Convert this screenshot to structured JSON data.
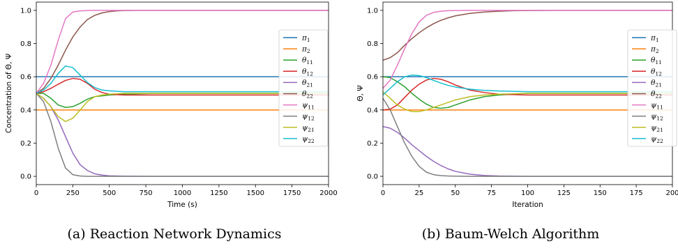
{
  "captions": {
    "a": "(a) Reaction Network Dynamics",
    "b": "(b) Baum-Welch Algorithm"
  },
  "legend_labels": [
    {
      "base": "π",
      "sub": "1"
    },
    {
      "base": "π",
      "sub": "2"
    },
    {
      "base": "θ",
      "sub": "11"
    },
    {
      "base": "θ",
      "sub": "12"
    },
    {
      "base": "θ",
      "sub": "21"
    },
    {
      "base": "θ",
      "sub": "22"
    },
    {
      "base": "ψ",
      "sub": "11"
    },
    {
      "base": "ψ",
      "sub": "12"
    },
    {
      "base": "ψ",
      "sub": "21"
    },
    {
      "base": "ψ",
      "sub": "22"
    }
  ],
  "colors": [
    "#1f77b4",
    "#ff7f0e",
    "#2ca02c",
    "#d62728",
    "#9467bd",
    "#8c564b",
    "#e377c2",
    "#7f7f7f",
    "#bcbd22",
    "#17becf"
  ],
  "chart_data": [
    {
      "type": "line",
      "xlabel": "Time (s)",
      "ylabel": "Concentration of  Θ, Ψ",
      "xlim": [
        0,
        2000
      ],
      "ylim": [
        -0.05,
        1.05
      ],
      "xticks": [
        0,
        250,
        500,
        750,
        1000,
        1250,
        1500,
        1750,
        2000
      ],
      "yticks": [
        0.0,
        0.2,
        0.4,
        0.6,
        0.8,
        1.0
      ],
      "legend_position": "center-right",
      "series": [
        {
          "name": "π1",
          "x": [
            0,
            2000
          ],
          "y": [
            0.6,
            0.6
          ]
        },
        {
          "name": "π2",
          "x": [
            0,
            2000
          ],
          "y": [
            0.4,
            0.4
          ]
        },
        {
          "name": "θ11",
          "x": [
            0,
            50,
            100,
            150,
            200,
            250,
            300,
            350,
            400,
            500,
            600,
            800,
            2000
          ],
          "y": [
            0.5,
            0.5,
            0.47,
            0.43,
            0.415,
            0.42,
            0.44,
            0.465,
            0.48,
            0.49,
            0.495,
            0.5,
            0.5
          ]
        },
        {
          "name": "θ12",
          "x": [
            0,
            50,
            100,
            150,
            200,
            250,
            300,
            350,
            400,
            450,
            500,
            600,
            800,
            2000
          ],
          "y": [
            0.5,
            0.51,
            0.53,
            0.555,
            0.578,
            0.59,
            0.585,
            0.56,
            0.525,
            0.505,
            0.495,
            0.49,
            0.49,
            0.49
          ]
        },
        {
          "name": "θ21",
          "x": [
            0,
            50,
            100,
            150,
            200,
            250,
            300,
            350,
            400,
            450,
            500,
            600,
            800,
            2000
          ],
          "y": [
            0.5,
            0.47,
            0.42,
            0.34,
            0.24,
            0.14,
            0.07,
            0.035,
            0.015,
            0.007,
            0.003,
            0.001,
            0.0,
            0.0
          ]
        },
        {
          "name": "θ22",
          "x": [
            0,
            50,
            100,
            150,
            200,
            250,
            300,
            350,
            400,
            450,
            500,
            550,
            600,
            700,
            2000
          ],
          "y": [
            0.5,
            0.53,
            0.59,
            0.67,
            0.76,
            0.84,
            0.9,
            0.945,
            0.97,
            0.985,
            0.993,
            0.997,
            0.999,
            1.0,
            1.0
          ]
        },
        {
          "name": "ψ11",
          "x": [
            0,
            50,
            100,
            150,
            200,
            250,
            300,
            350,
            400,
            500,
            2000
          ],
          "y": [
            0.5,
            0.56,
            0.67,
            0.82,
            0.95,
            0.99,
            0.997,
            0.999,
            1.0,
            1.0,
            1.0
          ]
        },
        {
          "name": "ψ12",
          "x": [
            0,
            50,
            100,
            150,
            200,
            250,
            300,
            350,
            400,
            2000
          ],
          "y": [
            0.5,
            0.45,
            0.33,
            0.17,
            0.05,
            0.01,
            0.002,
            0.0,
            0.0,
            0.0
          ]
        },
        {
          "name": "ψ21",
          "x": [
            0,
            50,
            100,
            150,
            200,
            250,
            300,
            350,
            400,
            450,
            500,
            600,
            800,
            2000
          ],
          "y": [
            0.5,
            0.47,
            0.42,
            0.36,
            0.33,
            0.35,
            0.4,
            0.45,
            0.48,
            0.49,
            0.495,
            0.5,
            0.5,
            0.5
          ]
        },
        {
          "name": "ψ22",
          "x": [
            0,
            50,
            100,
            150,
            200,
            250,
            300,
            350,
            400,
            450,
            500,
            600,
            800,
            2000
          ],
          "y": [
            0.5,
            0.52,
            0.56,
            0.62,
            0.665,
            0.655,
            0.61,
            0.565,
            0.535,
            0.52,
            0.515,
            0.51,
            0.51,
            0.51
          ]
        }
      ]
    },
    {
      "type": "line",
      "xlabel": "Iteration",
      "ylabel": "Θ, Ψ",
      "xlim": [
        0,
        200
      ],
      "ylim": [
        -0.05,
        1.05
      ],
      "xticks": [
        0,
        25,
        50,
        75,
        100,
        125,
        150,
        175,
        200
      ],
      "yticks": [
        0.0,
        0.2,
        0.4,
        0.6,
        0.8,
        1.0
      ],
      "legend_position": "center-right",
      "series": [
        {
          "name": "π1",
          "x": [
            0,
            200
          ],
          "y": [
            0.6,
            0.6
          ]
        },
        {
          "name": "π2",
          "x": [
            0,
            200
          ],
          "y": [
            0.4,
            0.4
          ]
        },
        {
          "name": "θ11",
          "x": [
            0,
            5,
            10,
            15,
            20,
            25,
            30,
            35,
            40,
            45,
            50,
            60,
            70,
            80,
            100,
            200
          ],
          "y": [
            0.6,
            0.595,
            0.57,
            0.54,
            0.5,
            0.465,
            0.435,
            0.415,
            0.41,
            0.415,
            0.43,
            0.46,
            0.48,
            0.49,
            0.5,
            0.5
          ]
        },
        {
          "name": "θ12",
          "x": [
            0,
            5,
            10,
            15,
            20,
            25,
            30,
            35,
            40,
            45,
            50,
            60,
            70,
            80,
            100,
            200
          ],
          "y": [
            0.4,
            0.405,
            0.43,
            0.475,
            0.52,
            0.555,
            0.58,
            0.59,
            0.585,
            0.57,
            0.55,
            0.52,
            0.505,
            0.495,
            0.49,
            0.49
          ]
        },
        {
          "name": "θ21",
          "x": [
            0,
            5,
            10,
            15,
            20,
            25,
            30,
            35,
            40,
            45,
            50,
            60,
            70,
            80,
            100,
            130,
            200
          ],
          "y": [
            0.3,
            0.29,
            0.265,
            0.23,
            0.19,
            0.155,
            0.12,
            0.09,
            0.065,
            0.045,
            0.03,
            0.013,
            0.005,
            0.002,
            0.0,
            0.0,
            0.0
          ]
        },
        {
          "name": "θ22",
          "x": [
            0,
            5,
            10,
            15,
            20,
            25,
            30,
            35,
            40,
            45,
            50,
            60,
            70,
            80,
            90,
            100,
            120,
            200
          ],
          "y": [
            0.7,
            0.715,
            0.745,
            0.79,
            0.83,
            0.865,
            0.895,
            0.92,
            0.94,
            0.955,
            0.967,
            0.982,
            0.99,
            0.995,
            0.998,
            0.999,
            1.0,
            1.0
          ]
        },
        {
          "name": "ψ11",
          "x": [
            0,
            5,
            10,
            15,
            20,
            25,
            30,
            35,
            40,
            45,
            50,
            60,
            70,
            200
          ],
          "y": [
            0.53,
            0.58,
            0.67,
            0.77,
            0.86,
            0.93,
            0.97,
            0.988,
            0.995,
            0.998,
            0.999,
            1.0,
            1.0,
            1.0
          ]
        },
        {
          "name": "ψ12",
          "x": [
            0,
            5,
            10,
            15,
            20,
            25,
            30,
            35,
            40,
            45,
            50,
            60,
            200
          ],
          "y": [
            0.47,
            0.4,
            0.3,
            0.2,
            0.12,
            0.06,
            0.025,
            0.01,
            0.004,
            0.002,
            0.001,
            0.0,
            0.0
          ]
        },
        {
          "name": "ψ21",
          "x": [
            0,
            5,
            10,
            15,
            20,
            25,
            30,
            35,
            40,
            45,
            50,
            60,
            70,
            80,
            100,
            200
          ],
          "y": [
            0.51,
            0.47,
            0.43,
            0.405,
            0.39,
            0.39,
            0.4,
            0.415,
            0.43,
            0.445,
            0.46,
            0.48,
            0.49,
            0.495,
            0.5,
            0.5
          ]
        },
        {
          "name": "ψ22",
          "x": [
            0,
            5,
            10,
            15,
            20,
            25,
            30,
            35,
            40,
            45,
            50,
            60,
            70,
            80,
            100,
            200
          ],
          "y": [
            0.49,
            0.53,
            0.57,
            0.6,
            0.61,
            0.607,
            0.595,
            0.578,
            0.562,
            0.548,
            0.538,
            0.525,
            0.518,
            0.514,
            0.51,
            0.51
          ]
        }
      ]
    }
  ]
}
